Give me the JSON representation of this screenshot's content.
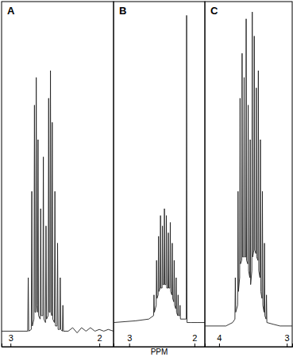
{
  "chart_data": [
    {
      "type": "line",
      "title": "A",
      "x": [
        3.1,
        2.85,
        2.806,
        2.8,
        2.794,
        2.766,
        2.76,
        2.754,
        2.736,
        2.73,
        2.724,
        2.716,
        2.71,
        2.704,
        2.696,
        2.69,
        2.684,
        2.666,
        2.66,
        2.654,
        2.636,
        2.63,
        2.624,
        2.606,
        2.6,
        2.594,
        2.576,
        2.57,
        2.564,
        2.556,
        2.55,
        2.544,
        2.536,
        2.53,
        2.524,
        2.506,
        2.5,
        2.494,
        2.476,
        2.47,
        2.464,
        2.446,
        2.44,
        2.434,
        2.416,
        2.41,
        2.404,
        2.35,
        2.3,
        2.25,
        2.2,
        2.15,
        2.1,
        2.05,
        2.0,
        1.95,
        1.9,
        1.84
      ],
      "series": [
        {
          "color": "#222222",
          "values": [
            4.5,
            4.5,
            4.5,
            20,
            4.5,
            5,
            45,
            6,
            8,
            70,
            10,
            10,
            78,
            12,
            10,
            60,
            9,
            8,
            40,
            9,
            9,
            55,
            8,
            7,
            35,
            8,
            9,
            72,
            10,
            10,
            80,
            10,
            9,
            65,
            8,
            7,
            45,
            6,
            6,
            30,
            5,
            5,
            20,
            5,
            4.5,
            12,
            4.5,
            4.5,
            5.5,
            4,
            5.5,
            4.5,
            5.5,
            4.5,
            5,
            4.5,
            5,
            4.5
          ]
        }
      ],
      "xlim": [
        3.1,
        1.84
      ],
      "xticks": [
        3,
        2
      ],
      "ylim": [
        0,
        100
      ],
      "tick_labels": "x"
    },
    {
      "type": "line",
      "title": "B",
      "x_label": "PPM",
      "x": [
        3.24,
        2.9,
        2.7,
        2.626,
        2.62,
        2.614,
        2.586,
        2.58,
        2.574,
        2.556,
        2.55,
        2.544,
        2.526,
        2.52,
        2.514,
        2.496,
        2.49,
        2.484,
        2.466,
        2.46,
        2.454,
        2.436,
        2.43,
        2.424,
        2.406,
        2.4,
        2.394,
        2.376,
        2.37,
        2.364,
        2.346,
        2.34,
        2.334,
        2.316,
        2.31,
        2.304,
        2.286,
        2.28,
        2.274,
        2.256,
        2.25,
        2.244,
        2.226,
        2.22,
        2.214,
        2.126,
        2.12,
        2.114,
        2.05,
        1.95,
        1.84
      ],
      "series": [
        {
          "color": "#222222",
          "values": [
            7,
            7.5,
            8,
            9,
            15,
            10,
            12,
            25,
            14,
            15,
            32,
            16,
            17,
            38,
            17,
            17,
            35,
            18,
            18,
            40,
            18,
            18,
            38,
            17,
            17,
            33,
            17,
            17,
            36,
            16,
            15,
            30,
            14,
            13,
            25,
            12,
            11,
            20,
            10,
            9,
            15,
            9,
            9,
            12,
            8,
            8,
            96,
            7,
            7,
            7,
            7
          ]
        }
      ],
      "xlim": [
        3.24,
        1.84
      ],
      "xticks": [
        3,
        2
      ],
      "ylim": [
        0,
        100
      ],
      "tick_labels": "x"
    },
    {
      "type": "line",
      "title": "C",
      "x": [
        4.21,
        3.9,
        3.8,
        3.766,
        3.76,
        3.754,
        3.726,
        3.72,
        3.714,
        3.696,
        3.69,
        3.684,
        3.666,
        3.66,
        3.654,
        3.636,
        3.63,
        3.624,
        3.606,
        3.6,
        3.594,
        3.576,
        3.57,
        3.564,
        3.546,
        3.54,
        3.534,
        3.516,
        3.51,
        3.504,
        3.486,
        3.48,
        3.474,
        3.456,
        3.45,
        3.444,
        3.426,
        3.42,
        3.414,
        3.396,
        3.39,
        3.384,
        3.366,
        3.36,
        3.354,
        3.336,
        3.33,
        3.324,
        3.306,
        3.3,
        3.294,
        3.2,
        3.1,
        2.92
      ],
      "series": [
        {
          "color": "#222222",
          "values": [
            6,
            6,
            7,
            8,
            20,
            10,
            12,
            45,
            16,
            20,
            72,
            24,
            25,
            85,
            26,
            26,
            78,
            26,
            26,
            95,
            25,
            24,
            70,
            22,
            20,
            60,
            18,
            22,
            97,
            26,
            28,
            90,
            28,
            27,
            75,
            26,
            25,
            80,
            22,
            20,
            60,
            16,
            14,
            45,
            12,
            10,
            30,
            9,
            8,
            15,
            7,
            6.5,
            6,
            6
          ]
        }
      ],
      "xlim": [
        4.21,
        2.92
      ],
      "xticks": [
        4,
        3
      ],
      "ylim": [
        0,
        100
      ],
      "tick_labels": "x"
    }
  ]
}
